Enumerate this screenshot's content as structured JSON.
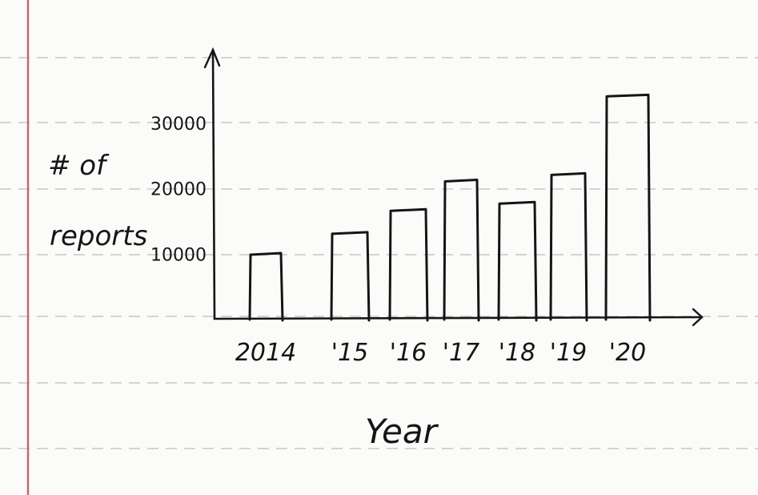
{
  "chart_data": {
    "type": "bar",
    "title": "",
    "xlabel": "Year",
    "ylabel": "# of reports",
    "categories": [
      "2014",
      "'15",
      "'16",
      "'17",
      "'18",
      "'19",
      "'20"
    ],
    "values": [
      9800,
      13000,
      16500,
      21000,
      17600,
      22000,
      34000
    ],
    "ylim": [
      0,
      40000
    ],
    "yticks": [
      10000,
      20000,
      30000
    ],
    "ytick_labels": [
      "10000",
      "20000",
      "30000"
    ],
    "grid": true,
    "legend": "none"
  },
  "colors": {
    "ink": "#151515",
    "paper": "#fbfbf9",
    "margin_line": "#b56f6f",
    "ruled_line": "#c8c8c8"
  }
}
